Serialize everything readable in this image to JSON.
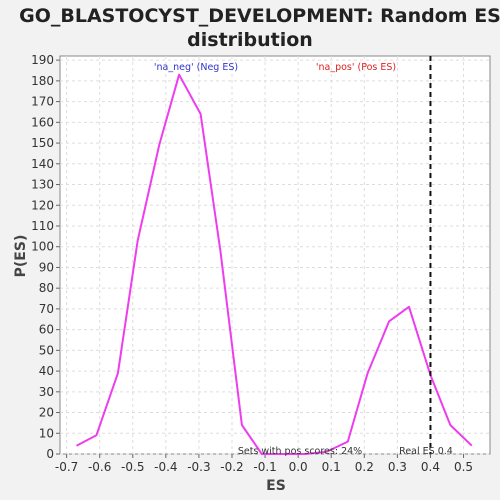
{
  "chart_data": {
    "type": "line",
    "title_lines": [
      "GO_BLASTOCYST_DEVELOPMENT: Random ES",
      "distribution"
    ],
    "xlabel": "ES",
    "ylabel": "P(ES)",
    "xlim": [
      -0.72,
      0.58
    ],
    "ylim": [
      0,
      192
    ],
    "x_ticks": [
      -0.7,
      -0.6,
      -0.5,
      -0.4,
      -0.3,
      -0.2,
      -0.1,
      0.0,
      0.1,
      0.2,
      0.3,
      0.4,
      0.5
    ],
    "x_tick_labels": [
      "-0.7",
      "-0.6",
      "-0.5",
      "-0.4",
      "-0.3",
      "-0.2",
      "-0.1",
      "0.0",
      "0.1",
      "0.2",
      "0.3",
      "0.4",
      "0.5"
    ],
    "y_ticks": [
      0,
      10,
      20,
      30,
      40,
      50,
      60,
      70,
      80,
      90,
      100,
      110,
      120,
      130,
      140,
      150,
      160,
      170,
      180,
      190
    ],
    "grid": true,
    "series": [
      {
        "color": "#ee3dee",
        "x": [
          -0.67,
          -0.61,
          -0.545,
          -0.485,
          -0.42,
          -0.36,
          -0.295,
          -0.235,
          -0.17,
          -0.11,
          -0.045,
          0.02,
          0.085,
          0.15,
          0.21,
          0.275,
          0.335,
          0.4,
          0.46,
          0.525
        ],
        "y": [
          4,
          9,
          39,
          103,
          149,
          183,
          164,
          98,
          14,
          0,
          0,
          0,
          1,
          6,
          39,
          64,
          71,
          38,
          14,
          4
        ]
      }
    ],
    "reference_line": {
      "x": 0.4,
      "style": "dashed",
      "color": "#111111"
    },
    "annotations": {
      "neg_label": {
        "text": "'na_neg' (Neg ES)",
        "color": "#3333cc"
      },
      "pos_label": {
        "text": "'na_pos' (Pos ES)",
        "color": "#dd2222"
      },
      "pos_scores": {
        "text": "Sets with pos scores: 24%",
        "color": "#333333"
      },
      "real_es": {
        "text": "Real ES 0.4",
        "color": "#333333"
      }
    }
  }
}
